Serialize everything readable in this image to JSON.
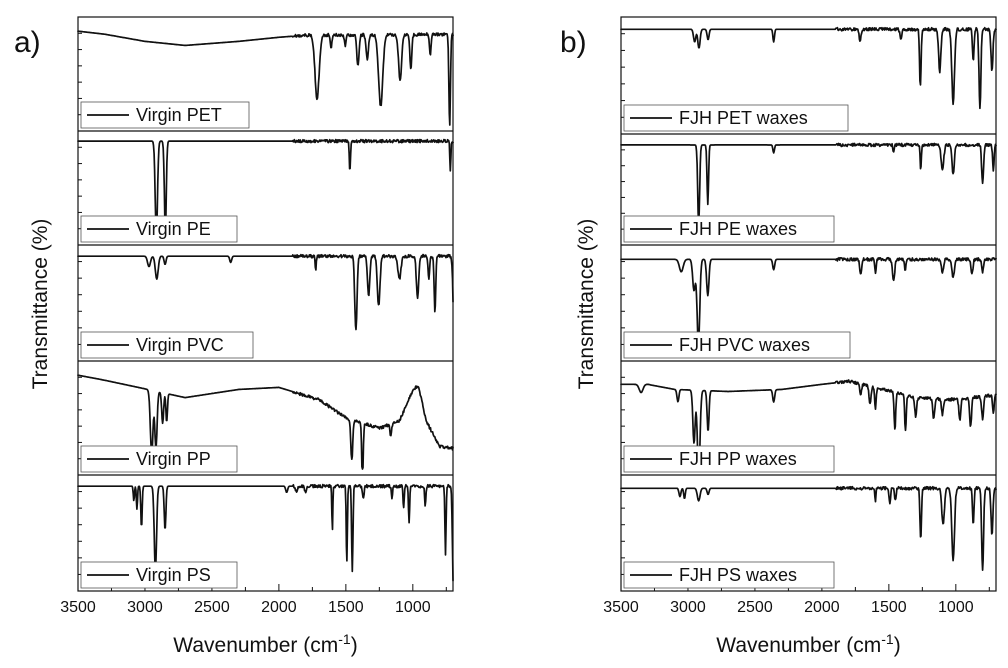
{
  "chart_data": [
    {
      "type": "line",
      "panel_label": "a)",
      "xlabel": "Wavenumber (cm",
      "xlabel_sup": "-1",
      "xlabel_end": ")",
      "ylabel": "Transmittance (%)",
      "xlim": [
        3500,
        700
      ],
      "xticks": [
        3500,
        3000,
        2500,
        2000,
        1500,
        1000
      ],
      "stacked": true,
      "legend_position": "bottom-left of each subpanel",
      "series": [
        {
          "name": "Virgin PET",
          "baseline": 0.08,
          "trend": [
            [
              3500,
              0.0
            ],
            [
              3300,
              0.03
            ],
            [
              3000,
              0.1
            ],
            [
              2700,
              0.14
            ],
            [
              2300,
              0.1
            ],
            [
              2000,
              0.06
            ],
            [
              1800,
              0.04
            ],
            [
              700,
              0.03
            ]
          ],
          "peaks": [
            [
              1715,
              0.62,
              22
            ],
            [
              1610,
              0.12,
              8
            ],
            [
              1505,
              0.1,
              8
            ],
            [
              1410,
              0.3,
              12
            ],
            [
              1340,
              0.25,
              12
            ],
            [
              1240,
              0.7,
              22
            ],
            [
              1095,
              0.45,
              16
            ],
            [
              1015,
              0.35,
              10
            ],
            [
              870,
              0.2,
              8
            ],
            [
              725,
              0.9,
              8
            ]
          ]
        },
        {
          "name": "Virgin PE",
          "baseline": 0.04,
          "trend": [
            [
              3500,
              0.0
            ],
            [
              700,
              0.0
            ]
          ],
          "peaks": [
            [
              2915,
              0.92,
              12
            ],
            [
              2848,
              0.88,
              10
            ],
            [
              1470,
              0.3,
              6
            ],
            [
              720,
              0.3,
              5
            ]
          ]
        },
        {
          "name": "Virgin PVC",
          "baseline": 0.05,
          "trend": [
            [
              3500,
              0.0
            ],
            [
              700,
              0.0
            ]
          ],
          "peaks": [
            [
              2970,
              0.1,
              15
            ],
            [
              2912,
              0.22,
              15
            ],
            [
              2850,
              0.08,
              10
            ],
            [
              2360,
              0.06,
              10
            ],
            [
              1725,
              0.12,
              6
            ],
            [
              1425,
              0.72,
              12
            ],
            [
              1330,
              0.38,
              12
            ],
            [
              1255,
              0.48,
              14
            ],
            [
              1100,
              0.22,
              16
            ],
            [
              965,
              0.4,
              12
            ],
            [
              880,
              0.22,
              8
            ],
            [
              835,
              0.55,
              8
            ],
            [
              690,
              0.9,
              12
            ]
          ]
        },
        {
          "name": "Virgin PP",
          "baseline": 0.08,
          "trend": [
            [
              3500,
              0.0
            ],
            [
              3300,
              0.05
            ],
            [
              3050,
              0.12
            ],
            [
              2700,
              0.22
            ],
            [
              2300,
              0.14
            ],
            [
              2000,
              0.12
            ],
            [
              1700,
              0.24
            ],
            [
              1500,
              0.42
            ],
            [
              1250,
              0.52
            ],
            [
              1100,
              0.45
            ],
            [
              1000,
              0.15
            ],
            [
              960,
              0.1
            ],
            [
              900,
              0.45
            ],
            [
              800,
              0.7
            ],
            [
              700,
              0.72
            ]
          ],
          "peaks": [
            [
              2950,
              0.62,
              14
            ],
            [
              2918,
              0.55,
              12
            ],
            [
              2868,
              0.3,
              10
            ],
            [
              2838,
              0.28,
              8
            ],
            [
              1456,
              0.4,
              10
            ],
            [
              1376,
              0.55,
              8
            ],
            [
              1165,
              0.12,
              8
            ]
          ]
        },
        {
          "name": "Virgin PS",
          "baseline": 0.05,
          "trend": [
            [
              3500,
              0.0
            ],
            [
              700,
              0.0
            ]
          ],
          "peaks": [
            [
              3083,
              0.14,
              6
            ],
            [
              3060,
              0.22,
              6
            ],
            [
              3026,
              0.4,
              7
            ],
            [
              2922,
              0.82,
              12
            ],
            [
              2850,
              0.42,
              9
            ],
            [
              1942,
              0.06,
              10
            ],
            [
              1870,
              0.05,
              10
            ],
            [
              1801,
              0.05,
              10
            ],
            [
              1601,
              0.42,
              5
            ],
            [
              1493,
              0.75,
              6
            ],
            [
              1452,
              0.82,
              7
            ],
            [
              1370,
              0.12,
              8
            ],
            [
              1155,
              0.12,
              6
            ],
            [
              1069,
              0.2,
              6
            ],
            [
              1028,
              0.35,
              6
            ],
            [
              907,
              0.2,
              6
            ],
            [
              756,
              0.65,
              6
            ],
            [
              698,
              0.95,
              9
            ]
          ]
        }
      ]
    },
    {
      "type": "line",
      "panel_label": "b)",
      "xlabel": "Wavenumber (cm",
      "xlabel_sup": "-1",
      "xlabel_end": ")",
      "ylabel": "Transmittance (%)",
      "xlim": [
        3500,
        700
      ],
      "xticks": [
        3500,
        3000,
        2500,
        2000,
        1500,
        1000
      ],
      "stacked": true,
      "legend_position": "bottom-left of each subpanel",
      "series": [
        {
          "name": "FJH PET waxes",
          "baseline": 0.06,
          "trend": [
            [
              3500,
              0.0
            ],
            [
              700,
              0.0
            ]
          ],
          "peaks": [
            [
              2950,
              0.12,
              12
            ],
            [
              2918,
              0.18,
              12
            ],
            [
              2850,
              0.1,
              10
            ],
            [
              2360,
              0.12,
              8
            ],
            [
              1715,
              0.12,
              10
            ],
            [
              1410,
              0.08,
              10
            ],
            [
              1265,
              0.55,
              8
            ],
            [
              1120,
              0.4,
              12
            ],
            [
              1020,
              0.7,
              14
            ],
            [
              870,
              0.3,
              8
            ],
            [
              820,
              0.75,
              10
            ],
            [
              730,
              0.4,
              10
            ]
          ]
        },
        {
          "name": "FJH PE waxes",
          "baseline": 0.05,
          "trend": [
            [
              3500,
              0.0
            ],
            [
              700,
              0.0
            ]
          ],
          "peaks": [
            [
              2920,
              0.8,
              10
            ],
            [
              2852,
              0.6,
              8
            ],
            [
              2360,
              0.08,
              8
            ],
            [
              1465,
              0.08,
              6
            ],
            [
              1262,
              0.25,
              6
            ],
            [
              1100,
              0.25,
              14
            ],
            [
              1020,
              0.3,
              12
            ],
            [
              800,
              0.4,
              10
            ],
            [
              720,
              0.25,
              8
            ]
          ]
        },
        {
          "name": "FJH PVC waxes",
          "baseline": 0.08,
          "trend": [
            [
              3500,
              0.0
            ],
            [
              700,
              0.0
            ]
          ],
          "peaks": [
            [
              3050,
              0.12,
              20
            ],
            [
              2955,
              0.3,
              14
            ],
            [
              2922,
              0.82,
              14
            ],
            [
              2852,
              0.35,
              12
            ],
            [
              2360,
              0.1,
              10
            ],
            [
              1710,
              0.15,
              10
            ],
            [
              1600,
              0.12,
              8
            ],
            [
              1465,
              0.2,
              12
            ],
            [
              1378,
              0.1,
              8
            ],
            [
              1100,
              0.12,
              12
            ],
            [
              1020,
              0.18,
              12
            ],
            [
              880,
              0.15,
              10
            ],
            [
              800,
              0.12,
              10
            ]
          ]
        },
        {
          "name": "FJH PP waxes",
          "baseline": 0.12,
          "trend": [
            [
              3500,
              0.05
            ],
            [
              3300,
              0.05
            ],
            [
              3100,
              0.1
            ],
            [
              2700,
              0.12
            ],
            [
              2300,
              0.1
            ],
            [
              2000,
              0.05
            ],
            [
              1800,
              0.02
            ],
            [
              1600,
              0.08
            ],
            [
              1300,
              0.18
            ],
            [
              1000,
              0.2
            ],
            [
              700,
              0.15
            ]
          ],
          "peaks": [
            [
              3350,
              0.08,
              20
            ],
            [
              3075,
              0.12,
              10
            ],
            [
              2955,
              0.52,
              12
            ],
            [
              2920,
              0.82,
              14
            ],
            [
              2850,
              0.4,
              10
            ],
            [
              2360,
              0.12,
              10
            ],
            [
              1710,
              0.1,
              10
            ],
            [
              1640,
              0.18,
              10
            ],
            [
              1600,
              0.2,
              8
            ],
            [
              1455,
              0.38,
              8
            ],
            [
              1376,
              0.35,
              8
            ],
            [
              1300,
              0.18,
              10
            ],
            [
              1165,
              0.2,
              10
            ],
            [
              1100,
              0.15,
              10
            ],
            [
              970,
              0.2,
              10
            ],
            [
              890,
              0.28,
              10
            ],
            [
              800,
              0.22,
              10
            ],
            [
              720,
              0.18,
              8
            ]
          ]
        },
        {
          "name": "FJH PS waxes",
          "baseline": 0.07,
          "trend": [
            [
              3500,
              0.0
            ],
            [
              700,
              0.0
            ]
          ],
          "peaks": [
            [
              3060,
              0.08,
              10
            ],
            [
              3026,
              0.1,
              8
            ],
            [
              2920,
              0.12,
              14
            ],
            [
              2850,
              0.06,
              10
            ],
            [
              1601,
              0.12,
              6
            ],
            [
              1493,
              0.15,
              8
            ],
            [
              1452,
              0.12,
              8
            ],
            [
              1262,
              0.5,
              8
            ],
            [
              1095,
              0.35,
              14
            ],
            [
              1020,
              0.7,
              14
            ],
            [
              870,
              0.35,
              8
            ],
            [
              800,
              0.8,
              10
            ],
            [
              730,
              0.45,
              10
            ]
          ]
        }
      ]
    }
  ]
}
